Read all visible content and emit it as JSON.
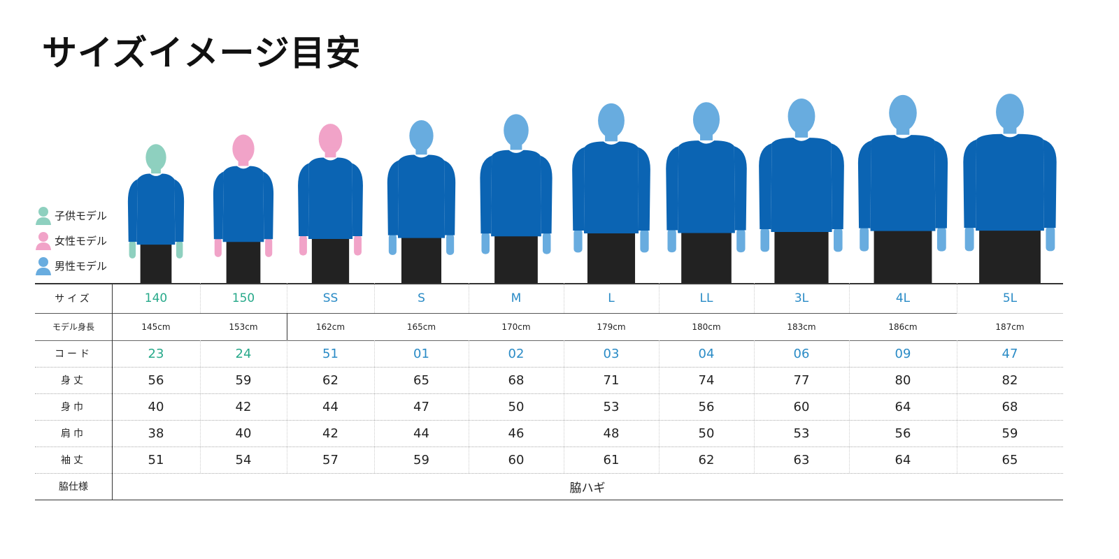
{
  "title": "サイズイメージ目安",
  "legend": [
    {
      "label": "子供モデル",
      "color": "#8ed0bf"
    },
    {
      "label": "女性モデル",
      "color": "#f1a3c8"
    },
    {
      "label": "男性モデル",
      "color": "#68acdf"
    }
  ],
  "colors": {
    "child_text": "#27a98a",
    "adult_text": "#2a8bc6",
    "shirt": "#0b64b3",
    "shorts": "#222222"
  },
  "row_labels": {
    "size": "サイズ",
    "height": "モデル身長",
    "code": "コード",
    "body_length": "身丈",
    "body_width": "身巾",
    "shoulder": "肩巾",
    "sleeve": "袖丈",
    "side": "脇仕様"
  },
  "columns": [
    {
      "size": "140",
      "model": "child",
      "height": "145cm",
      "code": "23",
      "body_length": "56",
      "body_width": "40",
      "shoulder": "38",
      "sleeve": "51"
    },
    {
      "size": "150",
      "model": "female",
      "height": "153cm",
      "code": "24",
      "body_length": "59",
      "body_width": "42",
      "shoulder": "40",
      "sleeve": "54"
    },
    {
      "size": "SS",
      "model": "female",
      "height": "162cm",
      "code": "51",
      "body_length": "62",
      "body_width": "44",
      "shoulder": "42",
      "sleeve": "57"
    },
    {
      "size": "S",
      "model": "male",
      "height": "165cm",
      "code": "01",
      "body_length": "65",
      "body_width": "47",
      "shoulder": "44",
      "sleeve": "59"
    },
    {
      "size": "M",
      "model": "male",
      "height": "170cm",
      "code": "02",
      "body_length": "68",
      "body_width": "50",
      "shoulder": "46",
      "sleeve": "60"
    },
    {
      "size": "L",
      "model": "male",
      "height": "179cm",
      "code": "03",
      "body_length": "71",
      "body_width": "53",
      "shoulder": "48",
      "sleeve": "61"
    },
    {
      "size": "LL",
      "model": "male",
      "height": "180cm",
      "code": "04",
      "body_length": "74",
      "body_width": "56",
      "shoulder": "50",
      "sleeve": "62"
    },
    {
      "size": "3L",
      "model": "male",
      "height": "183cm",
      "code": "06",
      "body_length": "77",
      "body_width": "60",
      "shoulder": "53",
      "sleeve": "63"
    },
    {
      "size": "4L",
      "model": "male",
      "height": "186cm",
      "code": "09",
      "body_length": "80",
      "body_width": "64",
      "shoulder": "56",
      "sleeve": "64"
    },
    {
      "size": "5L",
      "model": "male",
      "height": "187cm",
      "code": "47",
      "body_length": "82",
      "body_width": "68",
      "shoulder": "59",
      "sleeve": "65"
    }
  ],
  "side_spec": "脇ハギ"
}
